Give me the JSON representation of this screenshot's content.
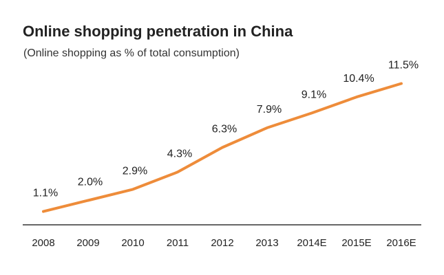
{
  "chart_data": {
    "type": "line",
    "title": "Online shopping penetration in China",
    "subtitle": "(Online shopping as % of total consumption)",
    "categories": [
      "2008",
      "2009",
      "2010",
      "2011",
      "2012",
      "2013",
      "2014E",
      "2015E",
      "2016E"
    ],
    "series": [
      {
        "values": [
          1.1,
          2.0,
          2.9,
          4.3,
          6.3,
          7.9,
          9.1,
          10.4,
          11.5
        ],
        "labels": [
          "1.1%",
          "2.0%",
          "2.9%",
          "4.3%",
          "6.3%",
          "7.9%",
          "9.1%",
          "10.4%",
          "11.5%"
        ],
        "color": "#ee8c3a"
      }
    ],
    "xlabel": "",
    "ylabel": "",
    "ylim": [
      0,
      12.5
    ],
    "grid": false,
    "axis_color": "#666666"
  }
}
